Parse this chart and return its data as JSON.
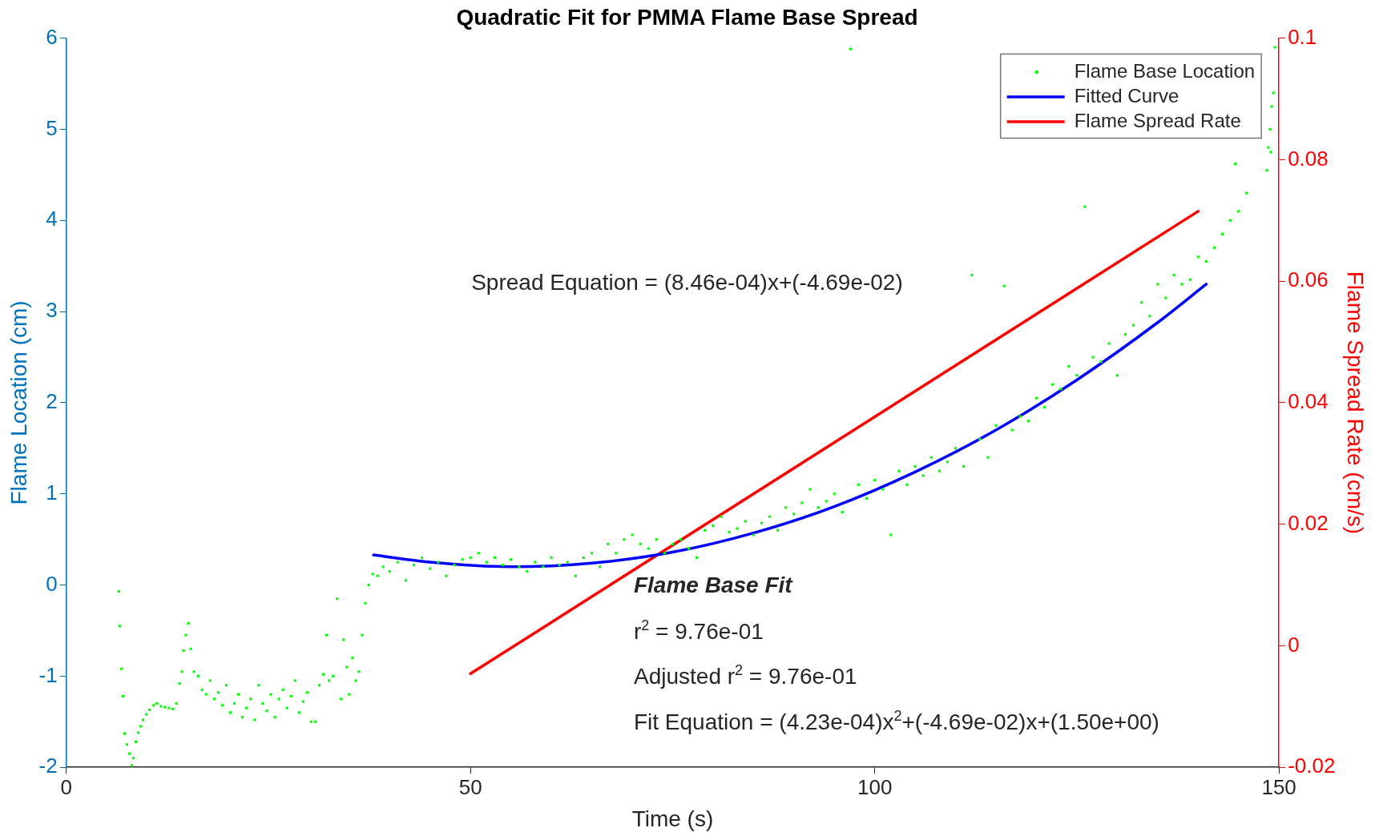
{
  "chart_data": {
    "type": "scatter",
    "title": "Quadratic Fit for PMMA Flame Base Spread",
    "xlabel": "Time (s)",
    "ylabel": "Flame Location (cm)",
    "y2label": "Flame Spread Rate (cm/s)",
    "xlim": [
      0,
      150
    ],
    "xticks": [
      0,
      50,
      100,
      150
    ],
    "ylim": [
      -2,
      6
    ],
    "yticks": [
      -2,
      -1,
      0,
      1,
      2,
      3,
      4,
      5,
      6
    ],
    "y2lim": [
      -0.02,
      0.1
    ],
    "y2ticks": [
      -0.02,
      0,
      0.02,
      0.04,
      0.06,
      0.08,
      0.1
    ],
    "grid": false,
    "legend": "top right",
    "annotations": [
      "Spread Equation = (8.46e-04)x+(-4.69e-02)",
      "Flame Base Fit",
      "r$^{2}$  =  9.76e-01",
      "Adjusted  r$^{2}$  =  9.76e-01",
      "Fit  Equation  =  (4.23e-04)x$^{2}$+(-4.69e-02)x+(1.50e+00)"
    ],
    "series": [
      {
        "name": "Flame Base Location",
        "type": "scatter",
        "marker": "square",
        "color": "#00ff00",
        "x": [
          6.5,
          6.6,
          6.8,
          7.0,
          7.2,
          7.5,
          7.8,
          8.1,
          8.3,
          8.6,
          8.9,
          9.2,
          9.5,
          9.9,
          10.3,
          10.8,
          11.2,
          11.7,
          12.2,
          12.7,
          13.2,
          13.6,
          14.0,
          14.3,
          14.5,
          14.8,
          15.1,
          15.4,
          15.8,
          16.3,
          16.8,
          17.3,
          17.8,
          18.3,
          18.8,
          19.3,
          19.8,
          20.3,
          20.8,
          21.3,
          21.8,
          22.3,
          22.8,
          23.3,
          23.8,
          24.3,
          24.8,
          25.3,
          25.8,
          26.3,
          26.8,
          27.3,
          27.8,
          28.3,
          28.8,
          29.3,
          29.8,
          30.3,
          30.8,
          31.3,
          31.8,
          32.2,
          32.5,
          33.0,
          33.5,
          34.0,
          34.3,
          34.7,
          35.0,
          35.4,
          35.8,
          36.2,
          36.6,
          37.0,
          37.4,
          37.9,
          38.5,
          39.2,
          40.0,
          41.0,
          42.0,
          43.0,
          44.0,
          45.0,
          46.0,
          47.0,
          48.0,
          49.0,
          50.0,
          51.0,
          52.0,
          53.0,
          54.0,
          55.0,
          56.0,
          57.0,
          58.0,
          59.0,
          60.0,
          61.0,
          62.0,
          63.0,
          64.0,
          65.0,
          66.0,
          67.0,
          68.0,
          69.0,
          70.0,
          71.0,
          72.0,
          73.0,
          74.0,
          75.0,
          76.0,
          77.0,
          78.0,
          79.0,
          80.0,
          81.0,
          82.0,
          83.0,
          84.0,
          85.0,
          86.0,
          87.0,
          88.0,
          89.0,
          90.0,
          91.0,
          92.0,
          93.0,
          94.0,
          95.0,
          96.0,
          97.0,
          98.0,
          99.0,
          100.0,
          101.0,
          102.0,
          103.0,
          104.0,
          105.0,
          106.0,
          107.0,
          108.0,
          109.0,
          110.0,
          111.0,
          112.0,
          113.0,
          114.0,
          115.0,
          116.0,
          117.0,
          118.0,
          119.0,
          120.0,
          121.0,
          122.0,
          123.0,
          124.0,
          125.0,
          126.0,
          127.0,
          128.0,
          129.0,
          130.0,
          131.0,
          132.0,
          133.0,
          134.0,
          135.0,
          136.0,
          137.0,
          138.0,
          139.0,
          140.0,
          141.0,
          142.0,
          143.0,
          144.0,
          144.6,
          145.0,
          146.0,
          148.5,
          148.7,
          148.9,
          149.1,
          149.3,
          149.0,
          149.5
        ],
        "values": [
          -0.07,
          -0.45,
          -0.92,
          -1.22,
          -1.63,
          -1.75,
          -1.85,
          -1.98,
          -1.9,
          -1.72,
          -1.62,
          -1.55,
          -1.48,
          -1.42,
          -1.37,
          -1.32,
          -1.3,
          -1.33,
          -1.34,
          -1.35,
          -1.36,
          -1.3,
          -1.08,
          -0.95,
          -0.72,
          -0.55,
          -0.42,
          -0.7,
          -0.95,
          -1.0,
          -1.15,
          -1.2,
          -1.05,
          -1.25,
          -1.18,
          -1.32,
          -1.1,
          -1.4,
          -1.3,
          -1.2,
          -1.45,
          -1.35,
          -1.25,
          -1.48,
          -1.1,
          -1.3,
          -1.38,
          -1.2,
          -1.45,
          -1.25,
          -1.15,
          -1.35,
          -1.22,
          -1.05,
          -1.4,
          -1.28,
          -1.18,
          -1.5,
          -1.5,
          -1.1,
          -0.98,
          -0.55,
          -1.05,
          -1.0,
          -0.15,
          -1.25,
          -0.6,
          -0.9,
          -1.2,
          -0.8,
          -1.05,
          -0.95,
          -0.55,
          -0.2,
          0.0,
          0.12,
          0.1,
          0.2,
          0.15,
          0.25,
          0.05,
          0.22,
          0.3,
          0.18,
          0.25,
          0.1,
          0.22,
          0.28,
          0.3,
          0.35,
          0.25,
          0.3,
          0.22,
          0.28,
          0.2,
          0.15,
          0.25,
          0.2,
          0.3,
          0.22,
          0.25,
          0.1,
          0.3,
          0.35,
          0.2,
          0.45,
          0.35,
          0.5,
          0.55,
          0.45,
          0.4,
          0.5,
          0.35,
          0.45,
          0.5,
          0.4,
          0.3,
          0.6,
          0.65,
          0.75,
          0.58,
          0.62,
          0.7,
          0.55,
          0.68,
          0.75,
          0.6,
          0.85,
          0.78,
          0.9,
          1.05,
          0.85,
          0.92,
          1.0,
          0.8,
          5.88,
          1.1,
          0.95,
          1.15,
          1.05,
          0.55,
          1.25,
          1.1,
          1.3,
          1.2,
          1.4,
          1.25,
          1.35,
          1.5,
          1.3,
          3.4,
          1.6,
          1.4,
          1.75,
          3.28,
          1.7,
          1.85,
          1.8,
          2.05,
          1.95,
          2.2,
          2.15,
          2.4,
          2.3,
          4.15,
          2.5,
          2.45,
          2.65,
          2.3,
          2.75,
          2.85,
          3.1,
          2.95,
          3.3,
          3.15,
          3.4,
          3.3,
          3.35,
          3.6,
          3.55,
          3.7,
          3.85,
          4.0,
          4.62,
          4.1,
          4.3,
          4.55,
          4.8,
          5.0,
          5.25,
          5.4,
          4.75,
          5.9
        ]
      },
      {
        "name": "Fitted Curve",
        "type": "line",
        "marker": "none",
        "color": "#0000ff",
        "x": [
          38,
          45,
          55,
          65,
          75,
          85,
          95,
          105,
          115,
          125,
          135,
          141
        ],
        "values": [
          0.33,
          0.25,
          0.2,
          0.24,
          0.36,
          0.57,
          0.86,
          1.24,
          1.7,
          2.25,
          2.88,
          3.3
        ]
      },
      {
        "name": "Flame Spread Rate",
        "type": "line",
        "marker": "none",
        "axis": "y2",
        "color": "#ff0000",
        "x": [
          50,
          140
        ],
        "values": [
          -0.0046,
          0.0715
        ]
      }
    ]
  }
}
